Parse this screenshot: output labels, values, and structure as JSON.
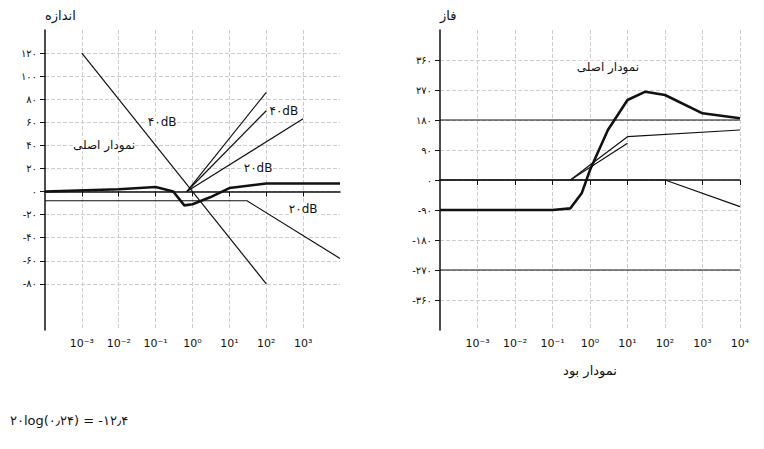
{
  "chart_data": [
    {
      "type": "line",
      "y_label": "اندازه",
      "log": "x",
      "grid": true,
      "xlim": [
        0.0001,
        10000
      ],
      "xticks": [
        {
          "value": 0.001,
          "label": "10⁻³"
        },
        {
          "value": 0.01,
          "label": "10⁻²"
        },
        {
          "value": 0.1,
          "label": "10⁻¹"
        },
        {
          "value": 1,
          "label": "10⁰"
        },
        {
          "value": 10,
          "label": "10¹"
        },
        {
          "value": 100,
          "label": "10²"
        },
        {
          "value": 1000,
          "label": "10³"
        }
      ],
      "ylim": [
        -120,
        140
      ],
      "yticks": [
        {
          "value": -80,
          "label": "-۸۰"
        },
        {
          "value": -60,
          "label": "-۶۰"
        },
        {
          "value": -40,
          "label": "-۴۰"
        },
        {
          "value": -20,
          "label": "-۲۰"
        },
        {
          "value": 0,
          "label": "۰"
        },
        {
          "value": 20,
          "label": "۲۰"
        },
        {
          "value": 40,
          "label": "۴۰"
        },
        {
          "value": 60,
          "label": "۶۰"
        },
        {
          "value": 80,
          "label": "۸۰"
        },
        {
          "value": 100,
          "label": "۱۰۰"
        },
        {
          "value": 120,
          "label": "۱۲۰"
        }
      ],
      "series": [
        {
          "color": "#111111",
          "line_style": "thick",
          "x": [
            0.0001,
            0.01,
            0.1,
            0.3,
            0.6,
            1,
            3,
            10,
            100,
            10000
          ],
          "values": [
            0,
            2,
            4,
            0,
            -12,
            -11,
            -5,
            3,
            7,
            7
          ]
        },
        {
          "color": "#111111",
          "line_style": "thin",
          "x": [
            0.001,
            100
          ],
          "values": [
            120,
            -80
          ]
        },
        {
          "color": "#111111",
          "line_style": "thin",
          "x": [
            0.7,
            100
          ],
          "values": [
            0,
            86
          ]
        },
        {
          "color": "#111111",
          "line_style": "thin",
          "x": [
            0.7,
            100
          ],
          "values": [
            0,
            70
          ]
        },
        {
          "color": "#111111",
          "line_style": "thin",
          "x": [
            0.7,
            1000
          ],
          "values": [
            0,
            63
          ]
        },
        {
          "color": "#111111",
          "line_style": "thin",
          "x": [
            0.0001,
            30,
            10000
          ],
          "values": [
            -8,
            -8,
            -58
          ]
        }
      ],
      "annotations": [
        {
          "text": "نمودار اصلی",
          "x": 0.004,
          "y": 40
        },
        {
          "text": "۴۰dB",
          "x": 0.15,
          "y": 60
        },
        {
          "text": "۴۰dB",
          "x": 300,
          "y": 70
        },
        {
          "text": "۲۰dB",
          "x": 60,
          "y": 20
        },
        {
          "text": "۲۰dB",
          "x": 1000,
          "y": -15
        }
      ],
      "note": "۲۰log(۰٫۲۴) = -۱۲٫۴"
    },
    {
      "type": "line",
      "y_label": "فاز",
      "log": "x",
      "grid": true,
      "caption": "نمودار بود",
      "xlim": [
        0.0001,
        10000
      ],
      "xticks": [
        {
          "value": 0.001,
          "label": "10⁻³"
        },
        {
          "value": 0.01,
          "label": "10⁻²"
        },
        {
          "value": 0.1,
          "label": "10⁻¹"
        },
        {
          "value": 1,
          "label": "10⁰"
        },
        {
          "value": 10,
          "label": "10¹"
        },
        {
          "value": 100,
          "label": "10²"
        },
        {
          "value": 1000,
          "label": "10³"
        },
        {
          "value": 10000,
          "label": "10⁴"
        }
      ],
      "ylim": [
        -450,
        450
      ],
      "yticks": [
        {
          "value": -360,
          "label": "-۳۶۰"
        },
        {
          "value": -270,
          "label": "-۲۷۰"
        },
        {
          "value": -180,
          "label": "-۱۸۰"
        },
        {
          "value": -90,
          "label": "-۹۰"
        },
        {
          "value": 0,
          "label": "۰"
        },
        {
          "value": 90,
          "label": "۹۰"
        },
        {
          "value": 180,
          "label": "۱۸۰"
        },
        {
          "value": 270,
          "label": "۲۷۰"
        },
        {
          "value": 360,
          "label": "۳۶۰"
        }
      ],
      "series": [
        {
          "color": "#111111",
          "line_style": "thick",
          "x": [
            0.0001,
            0.001,
            0.1,
            0.3,
            0.6,
            1,
            3,
            10,
            30,
            100,
            1000,
            10000
          ],
          "values": [
            -90,
            -90,
            -90,
            -85,
            -40,
            30,
            150,
            240,
            265,
            255,
            200,
            185
          ]
        },
        {
          "color": "#111111",
          "line_style": "thin",
          "x": [
            0.0001,
            10000
          ],
          "values": [
            180,
            180
          ]
        },
        {
          "color": "#111111",
          "line_style": "thin",
          "x": [
            0.0001,
            10000
          ],
          "values": [
            -270,
            -270
          ]
        },
        {
          "color": "#111111",
          "line_style": "thin",
          "x": [
            0.0001,
            100,
            10000
          ],
          "values": [
            0,
            0,
            -80
          ]
        },
        {
          "color": "#111111",
          "line_style": "thin",
          "x": [
            0.3,
            1,
            10,
            10000
          ],
          "values": [
            0,
            45,
            130,
            150
          ]
        },
        {
          "color": "#111111",
          "line_style": "thin",
          "x": [
            0.3,
            10
          ],
          "values": [
            0,
            110
          ]
        }
      ],
      "annotations": [
        {
          "text": "نمودار اصلی",
          "x": 3,
          "y": 340
        }
      ]
    }
  ]
}
